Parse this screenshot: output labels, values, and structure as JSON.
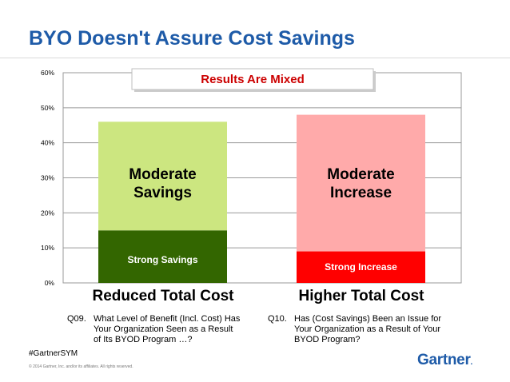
{
  "title": "BYO Doesn't Assure Cost Savings",
  "banner": "Results Are Mixed",
  "chart_data": {
    "type": "bar",
    "stacked": true,
    "categories": [
      "Reduced Total Cost",
      "Higher Total Cost"
    ],
    "ylim": [
      0,
      60
    ],
    "yticks": [
      0,
      10,
      20,
      30,
      40,
      50,
      60
    ],
    "ytick_labels": [
      "0%",
      "10%",
      "20%",
      "30%",
      "40%",
      "50%",
      "60%"
    ],
    "grid": true,
    "segments": [
      {
        "category": "Reduced Total Cost",
        "label": "Strong Savings",
        "value": 15,
        "color": "#336600",
        "text_color": "#ffffff"
      },
      {
        "category": "Reduced Total Cost",
        "label": "Moderate Savings",
        "value": 31,
        "color": "#cce680",
        "text_color": "#000000"
      },
      {
        "category": "Higher Total Cost",
        "label": "Strong Increase",
        "value": 9,
        "color": "#ff0000",
        "text_color": "#ffffff"
      },
      {
        "category": "Higher Total Cost",
        "label": "Moderate Increase",
        "value": 39,
        "color": "#ffaaaa",
        "text_color": "#000000"
      }
    ]
  },
  "segment_text": {
    "moderate_savings": [
      "Moderate",
      "Savings"
    ],
    "strong_savings": "Strong Savings",
    "moderate_increase": [
      "Moderate",
      "Increase"
    ],
    "strong_increase": "Strong Increase"
  },
  "questions": [
    {
      "num": "Q09.",
      "lines": [
        "What Level of Benefit (Incl. Cost) Has",
        "Your Organization Seen as a Result",
        "of Its BYOD Program …?"
      ]
    },
    {
      "num": "Q10.",
      "lines": [
        "Has (Cost Savings) Been an Issue for",
        "Your Organization as a Result of Your",
        "BYOD Program?"
      ]
    }
  ],
  "hashtag": "#GartnerSYM",
  "copyright": "© 2014 Gartner, Inc. and/or its affiliates. All rights reserved.",
  "logo": "Gartner",
  "colors": {
    "title": "#1e5ba8",
    "banner_text": "#cc0000"
  }
}
